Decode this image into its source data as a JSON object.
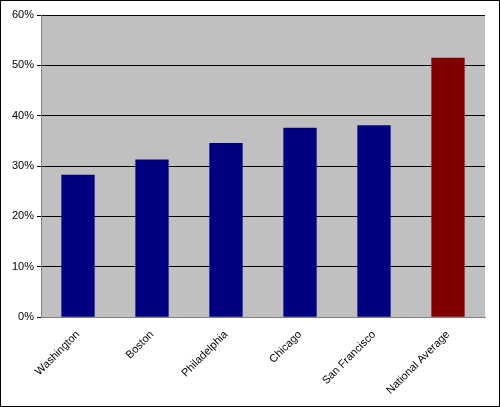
{
  "chart_data": {
    "type": "bar",
    "categories": [
      "Washington",
      "Boston",
      "Philadelphia",
      "Chicago",
      "San Francisco",
      "National Average"
    ],
    "values": [
      28.3,
      31.3,
      34.6,
      37.6,
      38.1,
      51.5
    ],
    "colors": [
      "#000080",
      "#000080",
      "#000080",
      "#000080",
      "#000080",
      "#800000"
    ],
    "ylim": [
      0,
      60
    ],
    "yticks": [
      {
        "value": 0,
        "label": "0%"
      },
      {
        "value": 10,
        "label": "10%"
      },
      {
        "value": 20,
        "label": "20%"
      },
      {
        "value": 30,
        "label": "30%"
      },
      {
        "value": 40,
        "label": "40%"
      },
      {
        "value": 50,
        "label": "50%"
      },
      {
        "value": 60,
        "label": "60%"
      }
    ],
    "grid": true
  }
}
